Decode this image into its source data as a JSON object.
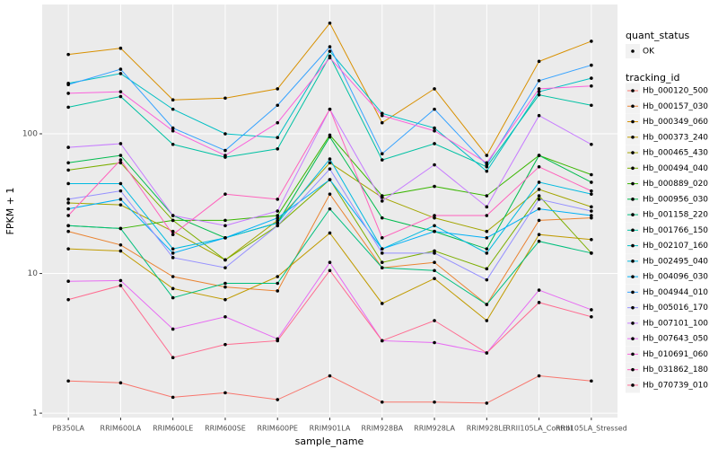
{
  "chart_data": {
    "type": "line",
    "xlabel": "sample_name",
    "ylabel": "FPKM + 1",
    "categories": [
      "PB350LA",
      "RRIM600LA",
      "RRIM600LE",
      "RRIM600SE",
      "RRIM600PE",
      "RRIM901LA",
      "RRIM928BA",
      "RRIM928LA",
      "RRIM928LE",
      "RRII105LA_Control",
      "RRII105LA_Stressed"
    ],
    "ylim": [
      0.93,
      843
    ],
    "yticks": [
      1,
      10,
      100
    ],
    "log_y": true,
    "grid": true,
    "point_legend": {
      "title": "quant_status",
      "levels": [
        "OK"
      ],
      "color": "#000000"
    },
    "legend_title": "tracking_id",
    "series": [
      {
        "name": "Hb_000120_500",
        "color": "#F8766D",
        "values": [
          1.7,
          1.65,
          1.3,
          1.4,
          1.25,
          1.85,
          1.2,
          1.2,
          1.18,
          1.85,
          1.7
        ]
      },
      {
        "name": "Hb_000157_030",
        "color": "#EA8331",
        "values": [
          20,
          16,
          9.5,
          8,
          7.5,
          37,
          11,
          12,
          6,
          24,
          25
        ]
      },
      {
        "name": "Hb_000349_060",
        "color": "#D89000",
        "values": [
          370,
          410,
          175,
          180,
          210,
          620,
          120,
          210,
          70,
          330,
          460
        ]
      },
      {
        "name": "Hb_000373_240",
        "color": "#C09B00",
        "values": [
          15,
          14.5,
          7.8,
          6.5,
          9.5,
          19.5,
          6.1,
          9.2,
          4.6,
          19,
          17.5
        ]
      },
      {
        "name": "Hb_000465_430",
        "color": "#A3A500",
        "values": [
          32,
          31,
          20,
          12.5,
          24,
          62,
          35,
          25,
          20,
          40,
          30
        ]
      },
      {
        "name": "Hb_000494_040",
        "color": "#7CAE00",
        "values": [
          55,
          62,
          24,
          12.5,
          22,
          47,
          12,
          14.5,
          10.8,
          36,
          14
        ]
      },
      {
        "name": "Hb_000889_020",
        "color": "#39B600",
        "values": [
          22,
          21,
          24,
          24,
          26,
          98,
          36,
          42,
          36,
          70,
          51
        ]
      },
      {
        "name": "Hb_000956_030",
        "color": "#00BB4E",
        "values": [
          62,
          70,
          26,
          18,
          23,
          95,
          25,
          20,
          15,
          70,
          45
        ]
      },
      {
        "name": "Hb_001158_220",
        "color": "#00BF7D",
        "values": [
          22,
          21,
          6.7,
          8.5,
          8.5,
          29,
          11,
          10.5,
          6,
          17,
          14
        ]
      },
      {
        "name": "Hb_001766_150",
        "color": "#00C1A3",
        "values": [
          155,
          185,
          84,
          68,
          78,
          360,
          65,
          85,
          58,
          190,
          160
        ]
      },
      {
        "name": "Hb_002107_160",
        "color": "#00BFC4",
        "values": [
          230,
          270,
          150,
          100,
          94,
          390,
          140,
          110,
          54,
          200,
          250
        ]
      },
      {
        "name": "Hb_002495_040",
        "color": "#00BAE0",
        "values": [
          44,
          44,
          15,
          18,
          23,
          66,
          15,
          22,
          14,
          45,
          37
        ]
      },
      {
        "name": "Hb_004096_030",
        "color": "#00B0F6",
        "values": [
          29,
          34,
          14,
          18,
          25,
          47,
          15,
          20,
          18,
          29,
          26
        ]
      },
      {
        "name": "Hb_004944_010",
        "color": "#35A2FF",
        "values": [
          225,
          290,
          110,
          76,
          160,
          420,
          72,
          150,
          60,
          240,
          310
        ]
      },
      {
        "name": "Hb_005016_170",
        "color": "#9590FF",
        "values": [
          34,
          39,
          13,
          11,
          22,
          56,
          14,
          14,
          9,
          34,
          28
        ]
      },
      {
        "name": "Hb_007101_100",
        "color": "#C77CFF",
        "values": [
          80,
          85,
          26,
          22,
          28,
          150,
          33,
          60,
          30,
          135,
          84
        ]
      },
      {
        "name": "Hb_007643_050",
        "color": "#E76BF3",
        "values": [
          8.8,
          8.9,
          4,
          4.9,
          3.4,
          12,
          3.3,
          3.2,
          2.7,
          7.6,
          5.5
        ]
      },
      {
        "name": "Hb_010691_060",
        "color": "#FA62DB",
        "values": [
          195,
          200,
          105,
          70,
          120,
          350,
          135,
          105,
          62,
          210,
          220
        ]
      },
      {
        "name": "Hb_031862_180",
        "color": "#FF62BC",
        "values": [
          26,
          65,
          19,
          37,
          34,
          150,
          18,
          26,
          26,
          58,
          39
        ]
      },
      {
        "name": "Hb_070739_010",
        "color": "#FF6C91",
        "values": [
          6.5,
          8.2,
          2.5,
          3.1,
          3.3,
          10.5,
          3.3,
          4.6,
          2.7,
          6.2,
          4.9
        ]
      }
    ]
  }
}
